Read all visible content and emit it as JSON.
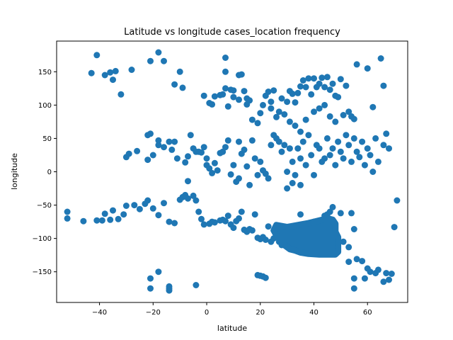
{
  "chart_data": {
    "type": "scatter",
    "title": "Latitude vs longitude cases_location frequency",
    "xlabel": "latitude",
    "ylabel": "longitude",
    "xlim": [
      -56,
      75
    ],
    "ylim": [
      -196,
      196
    ],
    "xticks": [
      -40,
      -20,
      0,
      20,
      40,
      60
    ],
    "yticks": [
      -150,
      -100,
      -50,
      0,
      50,
      100,
      150
    ],
    "grid": false,
    "legend": "none",
    "marker_color": "#1f77b4",
    "series": [
      {
        "points": [
          [
            -41,
            175
          ],
          [
            -43,
            148
          ],
          [
            -38,
            145
          ],
          [
            -36,
            149
          ],
          [
            -35,
            138
          ],
          [
            -34,
            151
          ],
          [
            -32,
            116
          ],
          [
            -28,
            153
          ],
          [
            -21,
            166
          ],
          [
            -18,
            179
          ],
          [
            -16,
            166
          ],
          [
            -12,
            131
          ],
          [
            -10,
            150
          ],
          [
            -9,
            126
          ],
          [
            -6,
            55
          ],
          [
            -3,
            30
          ],
          [
            -1,
            114
          ],
          [
            1,
            103
          ],
          [
            2,
            101
          ],
          [
            3,
            113
          ],
          [
            5,
            115
          ],
          [
            6,
            116
          ],
          [
            7,
            171
          ],
          [
            7,
            150
          ],
          [
            7,
            125
          ],
          [
            8,
            98
          ],
          [
            10,
            122
          ],
          [
            12,
            145
          ],
          [
            13,
            146
          ],
          [
            14,
            121
          ],
          [
            15,
            101
          ],
          [
            17,
            78
          ],
          [
            19,
            73
          ],
          [
            20,
            88
          ],
          [
            22,
            114
          ],
          [
            23,
            120
          ],
          [
            24,
            105
          ],
          [
            25,
            122
          ],
          [
            26,
            82
          ],
          [
            28,
            110
          ],
          [
            30,
            105
          ],
          [
            31,
            121
          ],
          [
            32,
            117
          ],
          [
            33,
            104
          ],
          [
            34,
            118
          ],
          [
            35,
            128
          ],
          [
            36,
            137
          ],
          [
            37,
            127
          ],
          [
            38,
            140
          ],
          [
            39,
            116
          ],
          [
            40,
            140
          ],
          [
            41,
            127
          ],
          [
            42,
            132
          ],
          [
            43,
            141
          ],
          [
            44,
            127
          ],
          [
            45,
            142
          ],
          [
            46,
            123
          ],
          [
            47,
            132
          ],
          [
            48,
            114
          ],
          [
            49,
            112
          ],
          [
            50,
            139
          ],
          [
            52,
            129
          ],
          [
            54,
            83
          ],
          [
            55,
            79
          ],
          [
            56,
            161
          ],
          [
            60,
            155
          ],
          [
            62,
            97
          ],
          [
            65,
            170
          ],
          [
            66,
            129
          ],
          [
            9,
            123
          ],
          [
            10,
            112
          ],
          [
            12,
            108
          ],
          [
            15,
            110
          ],
          [
            16,
            107
          ],
          [
            21,
            100
          ],
          [
            24,
            95
          ],
          [
            27,
            90
          ],
          [
            29,
            86
          ],
          [
            31,
            75
          ],
          [
            33,
            69
          ],
          [
            35,
            60
          ],
          [
            37,
            78
          ],
          [
            40,
            90
          ],
          [
            42,
            95
          ],
          [
            44,
            100
          ],
          [
            46,
            83
          ],
          [
            48,
            75
          ],
          [
            51,
            85
          ],
          [
            53,
            90
          ],
          [
            -22,
            55
          ],
          [
            -21,
            57
          ],
          [
            -18,
            47
          ],
          [
            -18,
            40
          ],
          [
            -16,
            37
          ],
          [
            -14,
            45
          ],
          [
            -13,
            33
          ],
          [
            -12,
            45
          ],
          [
            -11,
            20
          ],
          [
            -8,
            14
          ],
          [
            -7,
            -14
          ],
          [
            -7,
            23
          ],
          [
            -5,
            35
          ],
          [
            -4,
            30
          ],
          [
            -2,
            29
          ],
          [
            -1,
            37
          ],
          [
            0,
            20
          ],
          [
            0,
            10
          ],
          [
            1,
            5
          ],
          [
            2,
            -2
          ],
          [
            3,
            13
          ],
          [
            4,
            2
          ],
          [
            5,
            28
          ],
          [
            6,
            30
          ],
          [
            7,
            37
          ],
          [
            8,
            47
          ],
          [
            9,
            -4
          ],
          [
            10,
            10
          ],
          [
            11,
            -15
          ],
          [
            12,
            -10
          ],
          [
            12,
            45
          ],
          [
            13,
            27
          ],
          [
            14,
            33
          ],
          [
            15,
            8
          ],
          [
            16,
            -20
          ],
          [
            17,
            47
          ],
          [
            18,
            20
          ],
          [
            19,
            -5
          ],
          [
            20,
            15
          ],
          [
            21,
            2
          ],
          [
            22,
            -3
          ],
          [
            23,
            -10
          ],
          [
            24,
            40
          ],
          [
            25,
            55
          ],
          [
            26,
            50
          ],
          [
            27,
            45
          ],
          [
            28,
            30
          ],
          [
            29,
            40
          ],
          [
            30,
            0
          ],
          [
            31,
            35
          ],
          [
            32,
            15
          ],
          [
            33,
            -5
          ],
          [
            34,
            35
          ],
          [
            35,
            20
          ],
          [
            36,
            45
          ],
          [
            37,
            10
          ],
          [
            38,
            55
          ],
          [
            39,
            25
          ],
          [
            40,
            -5
          ],
          [
            41,
            40
          ],
          [
            42,
            35
          ],
          [
            43,
            15
          ],
          [
            44,
            20
          ],
          [
            45,
            50
          ],
          [
            46,
            25
          ],
          [
            47,
            35
          ],
          [
            48,
            10
          ],
          [
            49,
            45
          ],
          [
            50,
            30
          ],
          [
            51,
            20
          ],
          [
            52,
            55
          ],
          [
            53,
            40
          ],
          [
            54,
            15
          ],
          [
            55,
            50
          ],
          [
            56,
            30
          ],
          [
            57,
            22
          ],
          [
            58,
            45
          ],
          [
            59,
            10
          ],
          [
            60,
            35
          ],
          [
            61,
            25
          ],
          [
            62,
            0
          ],
          [
            63,
            50
          ],
          [
            64,
            15
          ],
          [
            66,
            40
          ],
          [
            67,
            57
          ],
          [
            68,
            35
          ],
          [
            -30,
            22
          ],
          [
            -29,
            27
          ],
          [
            -26,
            31
          ],
          [
            -22,
            18
          ],
          [
            -20,
            25
          ],
          [
            30,
            -25
          ],
          [
            32,
            -17
          ],
          [
            35,
            -20
          ],
          [
            -52,
            -60
          ],
          [
            -52,
            -70
          ],
          [
            -46,
            -74
          ],
          [
            -41,
            -73
          ],
          [
            -39,
            -73
          ],
          [
            -38,
            -63
          ],
          [
            -36,
            -72
          ],
          [
            -35,
            -58
          ],
          [
            -33,
            -71
          ],
          [
            -31,
            -64
          ],
          [
            -30,
            -51
          ],
          [
            -27,
            -50
          ],
          [
            -25,
            -56
          ],
          [
            -23,
            -48
          ],
          [
            -22,
            -43
          ],
          [
            -20,
            -55
          ],
          [
            -18,
            -65
          ],
          [
            -16,
            -47
          ],
          [
            -14,
            -75
          ],
          [
            -12,
            -77
          ],
          [
            -10,
            -42
          ],
          [
            -9,
            -38
          ],
          [
            -8,
            -35
          ],
          [
            -7,
            -40
          ],
          [
            -5,
            -36
          ],
          [
            -4,
            -43
          ],
          [
            -3,
            -60
          ],
          [
            -2,
            -71
          ],
          [
            -1,
            -79
          ],
          [
            1,
            -78
          ],
          [
            2,
            -75
          ],
          [
            3,
            -76
          ],
          [
            5,
            -73
          ],
          [
            6,
            -72
          ],
          [
            7,
            -74
          ],
          [
            8,
            -66
          ],
          [
            9,
            -79
          ],
          [
            10,
            -84
          ],
          [
            11,
            -74
          ],
          [
            12,
            -70
          ],
          [
            13,
            -60
          ],
          [
            14,
            -87
          ],
          [
            15,
            -90
          ],
          [
            16,
            -86
          ],
          [
            17,
            -88
          ],
          [
            18,
            -64
          ],
          [
            19,
            -99
          ],
          [
            20,
            -101
          ],
          [
            21,
            -98
          ],
          [
            22,
            -102
          ],
          [
            23,
            -82
          ],
          [
            24,
            -105
          ],
          [
            25,
            -100
          ],
          [
            26,
            -98
          ],
          [
            27,
            -105
          ],
          [
            28,
            -110
          ],
          [
            29,
            -95
          ],
          [
            30,
            -97
          ],
          [
            31,
            -92
          ],
          [
            32,
            -96
          ],
          [
            33,
            -84
          ],
          [
            34,
            -118
          ],
          [
            35,
            -80
          ],
          [
            36,
            -115
          ],
          [
            37,
            -122
          ],
          [
            38,
            -122
          ],
          [
            39,
            -121
          ],
          [
            40,
            -75
          ],
          [
            41,
            -88
          ],
          [
            42,
            -83
          ],
          [
            43,
            -89
          ],
          [
            44,
            -93
          ],
          [
            45,
            -122
          ],
          [
            46,
            -97
          ],
          [
            47,
            -117
          ],
          [
            48,
            -122
          ],
          [
            49,
            -100
          ],
          [
            50,
            -62
          ],
          [
            51,
            -105
          ],
          [
            53,
            -113
          ],
          [
            54,
            -62
          ],
          [
            55,
            -86
          ],
          [
            53,
            -135
          ],
          [
            56,
            -131
          ],
          [
            58,
            -134
          ],
          [
            60,
            -145
          ],
          [
            61,
            -150
          ],
          [
            63,
            -152
          ],
          [
            64,
            -147
          ],
          [
            66,
            -165
          ],
          [
            67,
            -152
          ],
          [
            68,
            -162
          ],
          [
            69,
            -153
          ],
          [
            70,
            -83
          ],
          [
            71,
            -43
          ],
          [
            59,
            -160
          ],
          [
            55,
            -160
          ],
          [
            55,
            -175
          ],
          [
            21,
            -157
          ],
          [
            20,
            -156
          ],
          [
            22,
            -159
          ],
          [
            19,
            -155
          ],
          [
            -4,
            -170
          ],
          [
            -14,
            -172
          ],
          [
            -14,
            -178
          ],
          [
            -18,
            -150
          ],
          [
            -21,
            -160
          ],
          [
            -21,
            -175
          ],
          [
            -14,
            -175
          ],
          [
            35,
            -64
          ],
          [
            47,
            -53
          ],
          [
            46,
            -60
          ],
          [
            45,
            -64
          ],
          [
            44,
            -66
          ]
        ]
      }
    ]
  }
}
